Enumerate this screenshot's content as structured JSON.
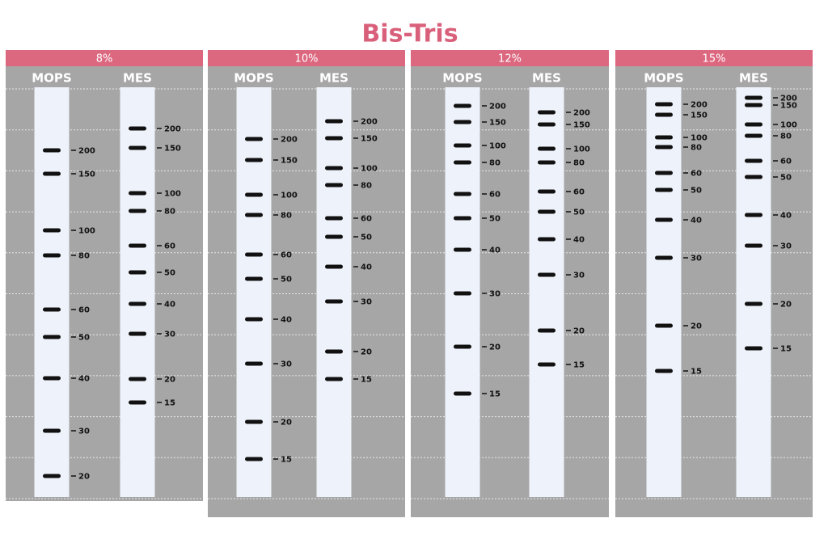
{
  "title": "Bis-Tris",
  "panels": [
    {
      "header": "8%",
      "lanes": [
        {
          "name": "MOPS",
          "bands": [
            200,
            150,
            100,
            80,
            60,
            50,
            40,
            30,
            20
          ]
        },
        {
          "name": "MES",
          "bands": [
            200,
            150,
            100,
            80,
            60,
            50,
            40,
            30,
            20,
            15
          ]
        }
      ]
    },
    {
      "header": "10%",
      "lanes": [
        {
          "name": "MOPS",
          "bands": [
            200,
            150,
            100,
            80,
            60,
            50,
            40,
            30,
            20,
            15
          ]
        },
        {
          "name": "MES",
          "bands": [
            200,
            150,
            100,
            80,
            60,
            50,
            40,
            30,
            20,
            15
          ]
        }
      ]
    },
    {
      "header": "12%",
      "lanes": [
        {
          "name": "MOPS",
          "bands": [
            200,
            150,
            100,
            80,
            60,
            50,
            40,
            30,
            20,
            15
          ]
        },
        {
          "name": "MES",
          "bands": [
            200,
            150,
            100,
            80,
            60,
            50,
            40,
            30,
            20,
            15
          ]
        }
      ]
    },
    {
      "header": "15%",
      "lanes": [
        {
          "name": "MOPS",
          "bands": [
            200,
            150,
            100,
            80,
            60,
            50,
            40,
            30,
            20,
            15
          ]
        },
        {
          "name": "MES",
          "bands": [
            200,
            150,
            100,
            80,
            60,
            50,
            40,
            30,
            20,
            15
          ]
        }
      ]
    }
  ]
}
